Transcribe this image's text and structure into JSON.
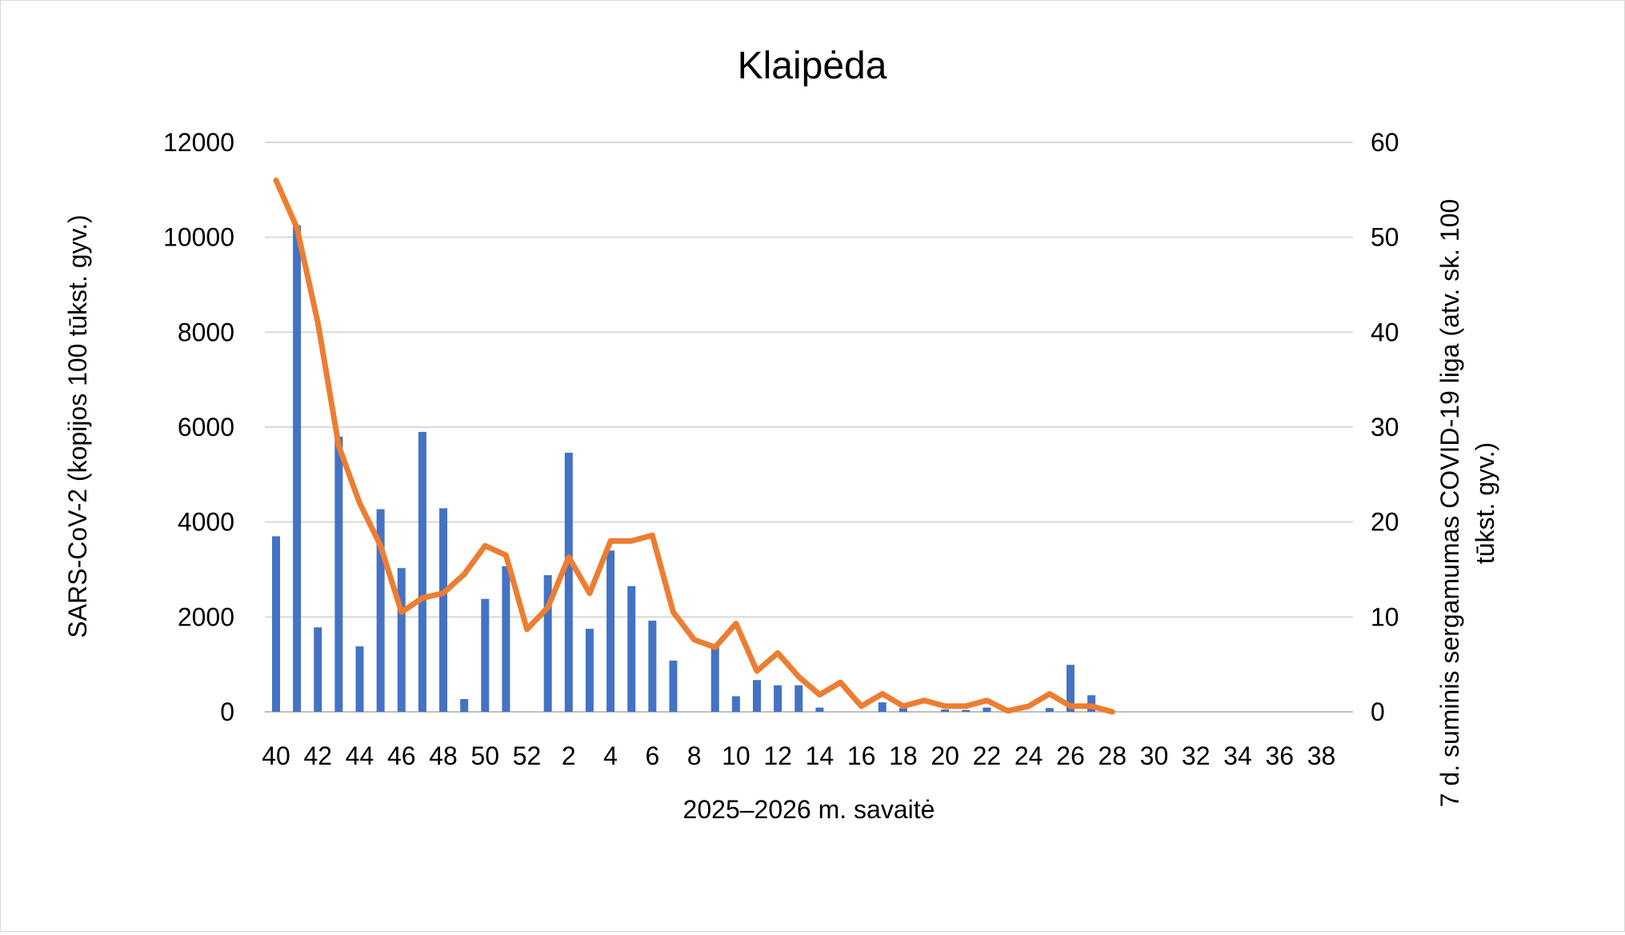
{
  "chart_data": {
    "type": "bar+line",
    "title": "Klaipėda",
    "xlabel": "2025–2026 m. savaitė",
    "ylabel_left": "SARS-CoV-2  (kopijos 100 tūkst. gyv.)",
    "ylabel_right": "7 d. suminis sergamumas COVID-19 liga (atv. sk. 100 tūkst. gyv.)",
    "y_left_range": [
      0,
      12000
    ],
    "y_right_range": [
      0,
      60
    ],
    "y_left_ticks": [
      "0",
      "2000",
      "4000",
      "6000",
      "8000",
      "10000",
      "12000"
    ],
    "y_right_ticks": [
      "0",
      "10",
      "20",
      "30",
      "40",
      "50",
      "60"
    ],
    "grid": true,
    "categories": [
      40,
      41,
      42,
      43,
      44,
      45,
      46,
      47,
      48,
      49,
      50,
      51,
      52,
      1,
      2,
      3,
      4,
      5,
      6,
      7,
      8,
      9,
      10,
      11,
      12,
      13,
      14,
      15,
      16,
      17,
      18,
      19,
      20,
      21,
      22,
      23,
      24,
      25,
      26,
      27,
      28,
      29,
      30,
      31,
      32,
      33,
      34,
      35,
      36,
      37,
      38,
      39
    ],
    "x_tick_labels": [
      "40",
      "42",
      "44",
      "46",
      "48",
      "50",
      "52",
      "2",
      "4",
      "6",
      "8",
      "10",
      "12",
      "14",
      "16",
      "18",
      "20",
      "22",
      "24",
      "26",
      "28",
      "30",
      "32",
      "34",
      "36",
      "38"
    ],
    "series": [
      {
        "type": "bar",
        "axis": "left",
        "color": "#4472C4",
        "values": [
          3700,
          10250,
          1780,
          5800,
          1380,
          4270,
          3030,
          5900,
          4290,
          270,
          2380,
          3070,
          null,
          2880,
          5460,
          1750,
          3400,
          2650,
          1920,
          1080,
          null,
          1420,
          330,
          670,
          560,
          560,
          90,
          null,
          null,
          200,
          80,
          null,
          50,
          40,
          90,
          null,
          null,
          80,
          990,
          350,
          null,
          null,
          null,
          null,
          null,
          null,
          null,
          null,
          null,
          null,
          null,
          null
        ]
      },
      {
        "type": "line",
        "axis": "right",
        "color": "#ED7D31",
        "values": [
          56,
          51,
          41,
          28,
          22,
          17.5,
          10.5,
          12,
          12.5,
          14.5,
          17.5,
          16.5,
          8.7,
          11,
          16.3,
          12.5,
          18,
          18,
          18.6,
          10.5,
          7.6,
          6.8,
          9.3,
          4.3,
          6.2,
          3.7,
          1.8,
          3.1,
          0.6,
          1.9,
          0.6,
          1.2,
          0.6,
          0.6,
          1.2,
          0.1,
          0.6,
          1.9,
          0.6,
          0.6,
          0,
          null,
          null,
          null,
          null,
          null,
          null,
          null,
          null,
          null,
          null,
          null
        ]
      }
    ]
  }
}
